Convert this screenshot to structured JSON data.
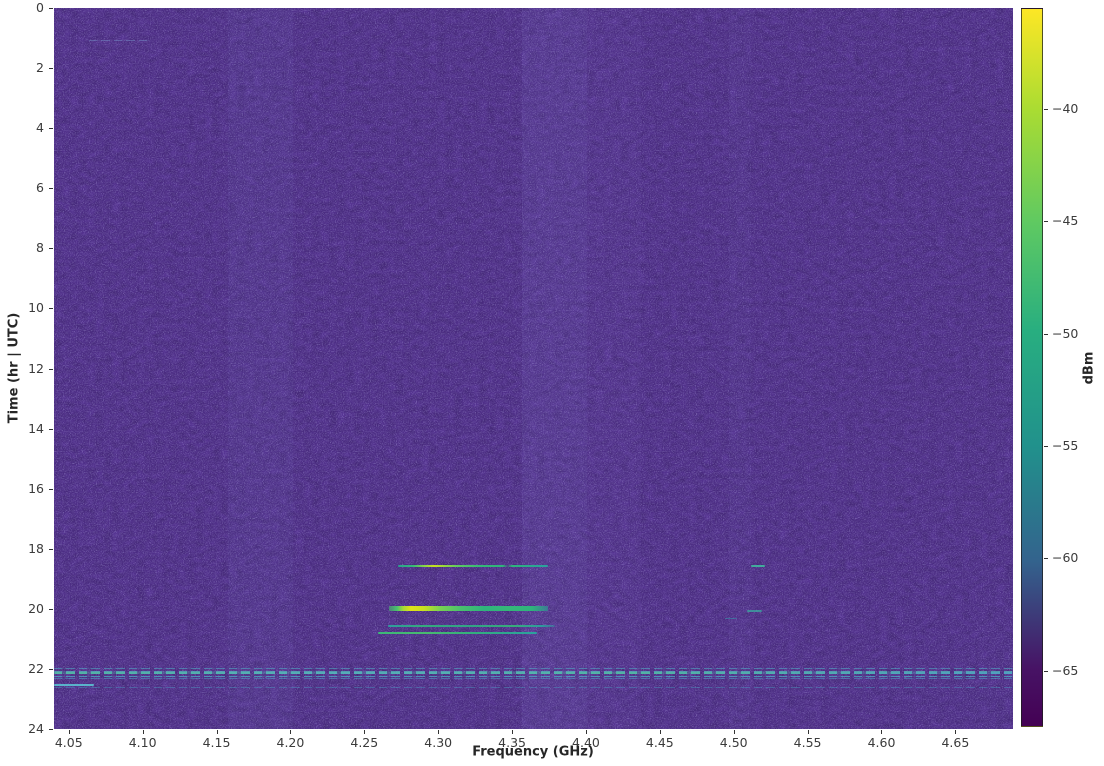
{
  "chart_data": {
    "type": "heatmap",
    "title": "",
    "xlabel": "Frequency (GHz)",
    "ylabel": "Time (hr | UTC)",
    "colorbar_label": "dBm",
    "colormap": "viridis",
    "x_range_ghz": [
      4.04,
      4.689
    ],
    "y_range_hr": [
      0,
      24
    ],
    "color_range_dbm": [
      -67.5,
      -35.5
    ],
    "background_level_dbm": -65.5,
    "grid": false,
    "x_ticks": [
      {
        "v": 4.05,
        "label": "4.05"
      },
      {
        "v": 4.1,
        "label": "4.10"
      },
      {
        "v": 4.15,
        "label": "4.15"
      },
      {
        "v": 4.2,
        "label": "4.20"
      },
      {
        "v": 4.25,
        "label": "4.25"
      },
      {
        "v": 4.3,
        "label": "4.30"
      },
      {
        "v": 4.35,
        "label": "4.35"
      },
      {
        "v": 4.4,
        "label": "4.40"
      },
      {
        "v": 4.45,
        "label": "4.45"
      },
      {
        "v": 4.5,
        "label": "4.50"
      },
      {
        "v": 4.55,
        "label": "4.55"
      },
      {
        "v": 4.6,
        "label": "4.60"
      },
      {
        "v": 4.65,
        "label": "4.65"
      }
    ],
    "y_ticks": [
      {
        "v": 0,
        "label": "0"
      },
      {
        "v": 2,
        "label": "2"
      },
      {
        "v": 4,
        "label": "4"
      },
      {
        "v": 6,
        "label": "6"
      },
      {
        "v": 8,
        "label": "8"
      },
      {
        "v": 10,
        "label": "10"
      },
      {
        "v": 12,
        "label": "12"
      },
      {
        "v": 14,
        "label": "14"
      },
      {
        "v": 16,
        "label": "16"
      },
      {
        "v": 18,
        "label": "18"
      },
      {
        "v": 20,
        "label": "20"
      },
      {
        "v": 22,
        "label": "22"
      },
      {
        "v": 24,
        "label": "24"
      }
    ],
    "colorbar_ticks": [
      {
        "v": -40,
        "label": "−40"
      },
      {
        "v": -45,
        "label": "−45"
      },
      {
        "v": -50,
        "label": "−50"
      },
      {
        "v": -55,
        "label": "−55"
      },
      {
        "v": -60,
        "label": "−60"
      },
      {
        "v": -65,
        "label": "−65"
      }
    ],
    "colors": {
      "plot_background": "#452879",
      "colorbar_top": "#fde725",
      "colorbar_bottom": "#440154",
      "band_highlight": "#6f5fb4",
      "tick_text": "#3b3b3b",
      "label_text": "#262626"
    },
    "vertical_bands": [
      {
        "f0": 4.158,
        "f1": 4.202,
        "alpha": 0.09
      },
      {
        "f0": 4.357,
        "f1": 4.401,
        "alpha": 0.16
      },
      {
        "f0": 4.401,
        "f1": 4.437,
        "alpha": 0.08
      },
      {
        "f0": 4.497,
        "f1": 4.512,
        "alpha": 0.06
      }
    ],
    "features": [
      {
        "name": "burst-18.6hr",
        "t": 18.58,
        "f0": 4.273,
        "f1": 4.374,
        "peak_dbm": -47,
        "h": 2,
        "opacity": 1,
        "dashed": false,
        "stops": [
          [
            0,
            "#2ba08f"
          ],
          [
            10,
            "#35b779"
          ],
          [
            18,
            "#8ed645"
          ],
          [
            24,
            "#c8e020"
          ],
          [
            30,
            "#9dd93b"
          ],
          [
            40,
            "#5ec962"
          ],
          [
            55,
            "#35b779"
          ],
          [
            70,
            "#2fb47c"
          ],
          [
            73,
            "rgba(47,180,124,0.1)"
          ],
          [
            76,
            "#2fb47c"
          ],
          [
            100,
            "#2ba0a0"
          ]
        ]
      },
      {
        "name": "burst-18.6hr-sidedash",
        "t": 18.58,
        "f0": 4.512,
        "f1": 4.521,
        "peak_dbm": -55,
        "h": 2,
        "opacity": 0.85,
        "dashed": false,
        "stops": [
          [
            0,
            "#3fbfa0"
          ],
          [
            100,
            "#3fbfa0"
          ]
        ]
      },
      {
        "name": "burst-20.1hr-main",
        "t": 20.0,
        "f0": 4.267,
        "f1": 4.374,
        "peak_dbm": -38,
        "h": 5,
        "opacity": 1,
        "dashed": false,
        "stops": [
          [
            0,
            "rgba(73,193,110,0.55)"
          ],
          [
            5,
            "#49c16e"
          ],
          [
            9,
            "#a8db34"
          ],
          [
            14,
            "#e0e318"
          ],
          [
            22,
            "#c8e020"
          ],
          [
            32,
            "#7ad151"
          ],
          [
            45,
            "#4ac16d"
          ],
          [
            60,
            "#2fb47c"
          ],
          [
            75,
            "#35b779"
          ],
          [
            90,
            "#2fb47c"
          ],
          [
            100,
            "rgba(42,160,150,0.6)"
          ]
        ]
      },
      {
        "name": "burst-20.1hr-sidedash",
        "t": 20.08,
        "f0": 4.509,
        "f1": 4.519,
        "peak_dbm": -56,
        "h": 2,
        "opacity": 0.7,
        "dashed": false,
        "stops": [
          [
            0,
            "#38b2a2"
          ],
          [
            100,
            "#38b2a2"
          ]
        ]
      },
      {
        "name": "burst-20.3hr-sidedash",
        "t": 20.31,
        "f0": 4.494,
        "f1": 4.502,
        "peak_dbm": -58,
        "h": 1,
        "opacity": 0.5,
        "dashed": false,
        "stops": [
          [
            0,
            "#2f9fae"
          ],
          [
            100,
            "#2f9fae"
          ]
        ]
      },
      {
        "name": "burst-20.6hr",
        "t": 20.57,
        "f0": 4.266,
        "f1": 4.379,
        "peak_dbm": -52,
        "h": 2,
        "opacity": 0.9,
        "dashed": false,
        "stops": [
          [
            0,
            "#2aa5a0"
          ],
          [
            20,
            "#31b57c"
          ],
          [
            50,
            "#2fae85"
          ],
          [
            75,
            "#35b779"
          ],
          [
            92,
            "#2aa5a0"
          ],
          [
            100,
            "rgba(42,165,160,0.4)"
          ]
        ]
      },
      {
        "name": "burst-20.9hr",
        "t": 20.82,
        "f0": 4.259,
        "f1": 4.367,
        "peak_dbm": -51,
        "h": 2,
        "opacity": 0.95,
        "dashed": false,
        "stops": [
          [
            0,
            "#3bbf77"
          ],
          [
            30,
            "#49c16e"
          ],
          [
            60,
            "#31b57c"
          ],
          [
            100,
            "#2aa5a0"
          ]
        ]
      },
      {
        "name": "wideband-sweep-1",
        "t": 21.99,
        "f0": 4.04,
        "f1": 4.689,
        "peak_dbm": -58,
        "h": 1,
        "opacity": 0.55,
        "dashed": true,
        "stops": [
          [
            0,
            "#4fb3c9"
          ],
          [
            100,
            "#4fb3c9"
          ]
        ]
      },
      {
        "name": "wideband-sweep-2",
        "t": 22.07,
        "f0": 4.04,
        "f1": 4.689,
        "peak_dbm": -57,
        "h": 1,
        "opacity": 0.7,
        "dashed": true,
        "stops": [
          [
            0,
            "#55c2c0"
          ],
          [
            100,
            "#55c2c0"
          ]
        ]
      },
      {
        "name": "wideband-sweep-3",
        "t": 22.15,
        "f0": 4.04,
        "f1": 4.689,
        "peak_dbm": -55,
        "h": 2,
        "opacity": 0.85,
        "dashed": true,
        "stops": [
          [
            0,
            "#52c9a8"
          ],
          [
            30,
            "#55c2c0"
          ],
          [
            60,
            "#52c9a8"
          ],
          [
            100,
            "#4fb3c9"
          ]
        ]
      },
      {
        "name": "wideband-sweep-4",
        "t": 22.24,
        "f0": 4.04,
        "f1": 4.689,
        "peak_dbm": -57,
        "h": 1,
        "opacity": 0.7,
        "dashed": true,
        "stops": [
          [
            0,
            "#4fb3c9"
          ],
          [
            100,
            "#4fb3c9"
          ]
        ]
      },
      {
        "name": "wideband-sweep-5",
        "t": 22.32,
        "f0": 4.04,
        "f1": 4.689,
        "peak_dbm": -59,
        "h": 1,
        "opacity": 0.5,
        "dashed": true,
        "stops": [
          [
            0,
            "#4aa9c9"
          ],
          [
            100,
            "#4aa9c9"
          ]
        ]
      },
      {
        "name": "left-edge-dash",
        "t": 22.55,
        "f0": 4.04,
        "f1": 4.067,
        "peak_dbm": -55,
        "h": 2,
        "opacity": 0.85,
        "dashed": false,
        "stops": [
          [
            0,
            "#5bc8d5"
          ],
          [
            100,
            "#5bc8d5"
          ]
        ]
      },
      {
        "name": "wideband-sweep-tail",
        "t": 22.62,
        "f0": 4.04,
        "f1": 4.689,
        "peak_dbm": -61,
        "h": 1,
        "opacity": 0.4,
        "dashed": true,
        "stops": [
          [
            0,
            "#4aa4c9"
          ],
          [
            100,
            "#4aa4c9"
          ]
        ]
      },
      {
        "name": "faint-dash-1.1hr",
        "t": 1.07,
        "f0": 4.064,
        "f1": 4.105,
        "peak_dbm": -62,
        "h": 1,
        "opacity": 0.45,
        "dashed": true,
        "stops": [
          [
            0,
            "#7a9ad1"
          ],
          [
            100,
            "#7a9ad1"
          ]
        ]
      }
    ]
  }
}
